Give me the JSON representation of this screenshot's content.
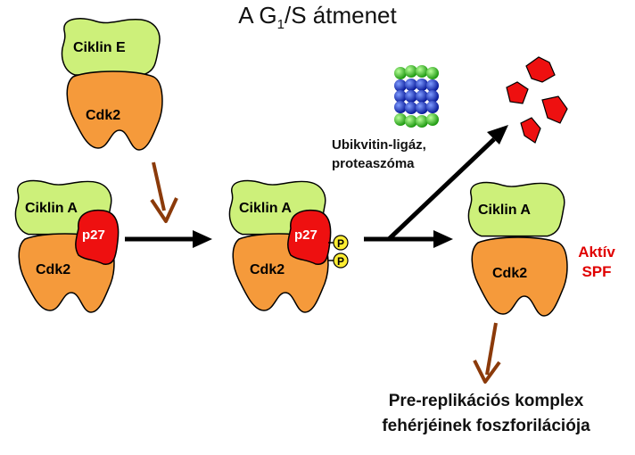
{
  "title": {
    "prefix": "A G",
    "subscript": "1",
    "suffix": "/S átmenet"
  },
  "labels": {
    "ciklin_e": "Ciklin E",
    "ciklin_a": "Ciklin A",
    "cdk2": "Cdk2",
    "p27": "p27",
    "phosphate": "P",
    "ligase_line1": "Ubikvitin-ligáz,",
    "ligase_line2": "proteaszóma",
    "aktiv_line1": "Aktív",
    "aktiv_line2": "SPF",
    "bottom_line1": "Pre-replikációs komplex",
    "bottom_line2": "fehérjéinek foszforilációja"
  },
  "colors": {
    "cyclin": "#cdf07a",
    "cdk": "#f59a3b",
    "p27": "#ee1010",
    "phosphate": "#ffee33",
    "brown_arrow": "#8b3a0a",
    "proteasome_green": "#33cc22",
    "proteasome_blue": "#1133cc",
    "active_text": "#e00000"
  }
}
